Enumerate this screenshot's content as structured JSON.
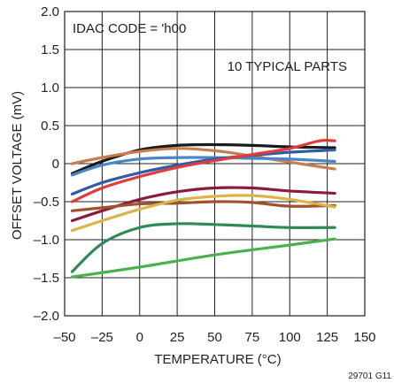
{
  "chart_data": {
    "type": "line",
    "xlabel": "TEMPERATURE (°C)",
    "ylabel": "OFFSET VOLTAGE (mV)",
    "xlim": [
      -50,
      150
    ],
    "ylim": [
      -2.0,
      2.0
    ],
    "x_ticks": [
      -50,
      -25,
      0,
      25,
      50,
      75,
      100,
      125,
      150
    ],
    "x_tick_labels": [
      "–50",
      "–25",
      "0",
      "25",
      "50",
      "75",
      "100",
      "125",
      "150"
    ],
    "y_ticks": [
      2.0,
      1.5,
      1.0,
      0.5,
      0,
      -0.5,
      -1.0,
      -1.5,
      -2.0
    ],
    "y_tick_labels": [
      "2.0",
      "1.5",
      "1.0",
      "0.5",
      "0",
      "–0.5",
      "–1.0",
      "–1.5",
      "–2.0"
    ],
    "grid": true,
    "annotations": [
      "IDAC CODE = 'h00",
      "10 TYPICAL PARTS"
    ],
    "figure_id": "29701 G11",
    "series": [
      {
        "color": "#1a1a1a",
        "points": [
          [
            -45,
            -0.13
          ],
          [
            -25,
            0.03
          ],
          [
            0,
            0.18
          ],
          [
            25,
            0.24
          ],
          [
            50,
            0.25
          ],
          [
            75,
            0.24
          ],
          [
            100,
            0.22
          ],
          [
            130,
            0.21
          ]
        ]
      },
      {
        "color": "#c87d4e",
        "points": [
          [
            -45,
            0.0
          ],
          [
            -25,
            0.08
          ],
          [
            0,
            0.16
          ],
          [
            25,
            0.2
          ],
          [
            50,
            0.17
          ],
          [
            75,
            0.1
          ],
          [
            100,
            0.02
          ],
          [
            130,
            -0.07
          ]
        ]
      },
      {
        "color": "#4a86c3",
        "points": [
          [
            -45,
            -0.15
          ],
          [
            -25,
            -0.02
          ],
          [
            0,
            0.06
          ],
          [
            25,
            0.08
          ],
          [
            50,
            0.08
          ],
          [
            75,
            0.07
          ],
          [
            100,
            0.06
          ],
          [
            130,
            0.03
          ]
        ]
      },
      {
        "color": "#2f5ca6",
        "points": [
          [
            -45,
            -0.4
          ],
          [
            -25,
            -0.25
          ],
          [
            0,
            -0.12
          ],
          [
            25,
            -0.02
          ],
          [
            50,
            0.06
          ],
          [
            75,
            0.11
          ],
          [
            100,
            0.15
          ],
          [
            130,
            0.18
          ]
        ]
      },
      {
        "color": "#e33a3a",
        "points": [
          [
            -45,
            -0.5
          ],
          [
            -25,
            -0.32
          ],
          [
            0,
            -0.17
          ],
          [
            25,
            -0.05
          ],
          [
            50,
            0.04
          ],
          [
            75,
            0.12
          ],
          [
            100,
            0.2
          ],
          [
            120,
            0.3
          ],
          [
            130,
            0.3
          ]
        ]
      },
      {
        "color": "#8b1a3c",
        "points": [
          [
            -45,
            -0.75
          ],
          [
            -25,
            -0.62
          ],
          [
            0,
            -0.47
          ],
          [
            25,
            -0.37
          ],
          [
            50,
            -0.32
          ],
          [
            75,
            -0.32
          ],
          [
            100,
            -0.36
          ],
          [
            130,
            -0.39
          ]
        ]
      },
      {
        "color": "#a0522d",
        "points": [
          [
            -45,
            -0.62
          ],
          [
            -25,
            -0.58
          ],
          [
            0,
            -0.53
          ],
          [
            25,
            -0.52
          ],
          [
            50,
            -0.5
          ],
          [
            75,
            -0.51
          ],
          [
            100,
            -0.56
          ],
          [
            130,
            -0.55
          ]
        ]
      },
      {
        "color": "#d9b54a",
        "points": [
          [
            -45,
            -0.88
          ],
          [
            -25,
            -0.75
          ],
          [
            0,
            -0.6
          ],
          [
            25,
            -0.48
          ],
          [
            50,
            -0.43
          ],
          [
            75,
            -0.42
          ],
          [
            100,
            -0.47
          ],
          [
            130,
            -0.57
          ]
        ]
      },
      {
        "color": "#2e8b57",
        "points": [
          [
            -45,
            -1.42
          ],
          [
            -25,
            -1.05
          ],
          [
            0,
            -0.84
          ],
          [
            25,
            -0.79
          ],
          [
            50,
            -0.8
          ],
          [
            75,
            -0.82
          ],
          [
            100,
            -0.84
          ],
          [
            130,
            -0.84
          ]
        ]
      },
      {
        "color": "#4caf50",
        "points": [
          [
            -45,
            -1.49
          ],
          [
            0,
            -1.36
          ],
          [
            50,
            -1.2
          ],
          [
            100,
            -1.07
          ],
          [
            130,
            -0.99
          ]
        ]
      }
    ]
  }
}
